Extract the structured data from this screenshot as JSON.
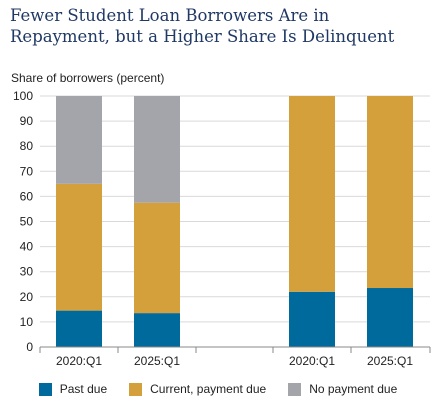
{
  "chart_data": {
    "type": "bar",
    "stacked": true,
    "title": "Fewer Student Loan Borrowers Are in Repayment, but a Higher Share Is Delinquent",
    "ylabel": "Share of borrowers (percent)",
    "xlabel": "",
    "ylim": [
      0,
      100
    ],
    "yticks": [
      0,
      10,
      20,
      30,
      40,
      50,
      60,
      70,
      80,
      90,
      100
    ],
    "grid": true,
    "legend_position": "bottom",
    "groups": [
      {
        "categories": [
          "2020:Q1",
          "2025:Q1"
        ]
      },
      {
        "categories": [
          "2020:Q1",
          "2025:Q1"
        ]
      }
    ],
    "categories": [
      "2020:Q1",
      "2025:Q1",
      "2020:Q1",
      "2025:Q1"
    ],
    "series": [
      {
        "name": "Past due",
        "color": "#006a9c",
        "values": [
          14.5,
          13.5,
          22,
          23.5
        ]
      },
      {
        "name": "Current, payment due",
        "color": "#d4a03c",
        "values": [
          50.5,
          44,
          78,
          76.5
        ]
      },
      {
        "name": "No payment due",
        "color": "#a4a5ab",
        "values": [
          35,
          42.5,
          0,
          0
        ]
      }
    ]
  }
}
